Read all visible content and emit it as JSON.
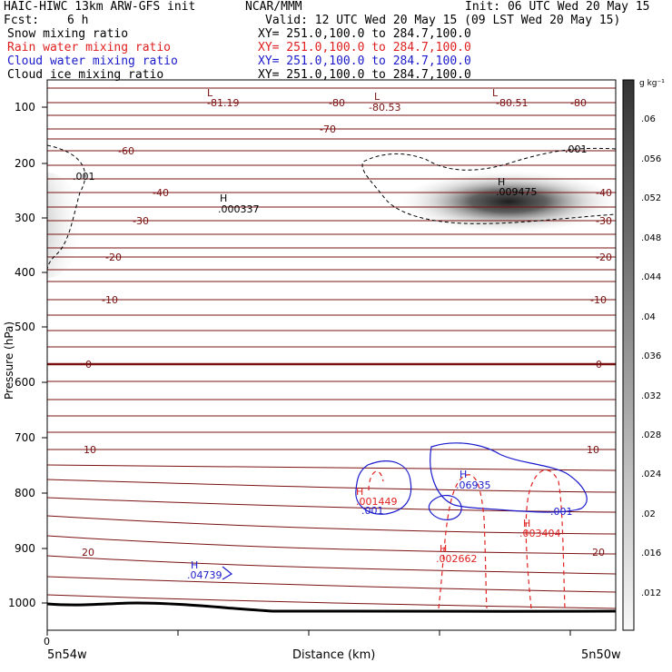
{
  "header": {
    "model": "HAIC-HIWC 13km ARW-GFS init",
    "org": "NCAR/MMM",
    "init": "Init: 06 UTC Wed 20 May 15",
    "fcst_label": "Fcst:",
    "fcst_value": "6 h",
    "valid": "Valid: 12 UTC Wed 20 May 15 (09 LST Wed 20 May 15)",
    "fields": [
      {
        "name": "Snow mixing ratio",
        "xy": "XY= 251.0,100.0 to 284.7,100.0",
        "color": "#000000"
      },
      {
        "name": "Rain water mixing ratio",
        "xy": "XY= 251.0,100.0 to 284.7,100.0",
        "color": "#e02020"
      },
      {
        "name": "Cloud water mixing ratio",
        "xy": "XY= 251.0,100.0 to 284.7,100.0",
        "color": "#1a1acc"
      },
      {
        "name": "Cloud ice mixing ratio",
        "xy": "XY= 251.0,100.0 to 284.7,100.0",
        "color": "#000000"
      }
    ]
  },
  "chart_data": {
    "type": "cross-section",
    "xlabel": "Distance (km)",
    "ylabel": "Pressure (hPa)",
    "x_start_label": "5n54w",
    "x_end_label": "5n50w",
    "x_zero_label": "0",
    "yticks": [
      100,
      200,
      300,
      400,
      500,
      600,
      700,
      800,
      900,
      1000
    ],
    "ylim": [
      1050,
      50
    ],
    "colorbar": {
      "unit": "g kg⁻¹",
      "ticks": [
        ".06",
        ".056",
        ".052",
        ".048",
        ".044",
        ".04",
        ".036",
        ".032",
        ".028",
        ".024",
        ".02",
        ".016",
        ".012"
      ]
    },
    "temperature_labels": [
      "-81.19",
      "-80",
      "-80.53",
      "-80.51",
      "-80",
      "-70",
      "-60",
      "-40",
      "-30",
      "-20",
      "-10",
      "0",
      "0",
      "10",
      "10",
      "20",
      "20",
      "-40",
      "-30",
      "-20",
      "-10",
      ".001",
      ".001"
    ],
    "extrema_labels": [
      {
        "kind": "L",
        "value": "-81.19"
      },
      {
        "kind": "L",
        "value": "-80.53"
      },
      {
        "kind": "L",
        "value": "-80.51"
      },
      {
        "kind": "H",
        "value": ".000337"
      },
      {
        "kind": "H",
        "value": ".009475"
      },
      {
        "kind": "H",
        "value": ".001449",
        "color": "#e02020"
      },
      {
        "kind": "H",
        "value": ".06935",
        "color": "#1a1acc"
      },
      {
        "kind": "H",
        "value": ".003404",
        "color": "#e02020"
      },
      {
        "kind": "H",
        "value": ".002662",
        "color": "#e02020"
      },
      {
        "kind": "H",
        "value": ".04739",
        "color": "#1a1acc"
      },
      {
        "kind": "",
        "value": ".001",
        "color": "#1a1acc"
      },
      {
        "kind": "",
        "value": ".001",
        "color": "#1a1acc"
      }
    ]
  }
}
